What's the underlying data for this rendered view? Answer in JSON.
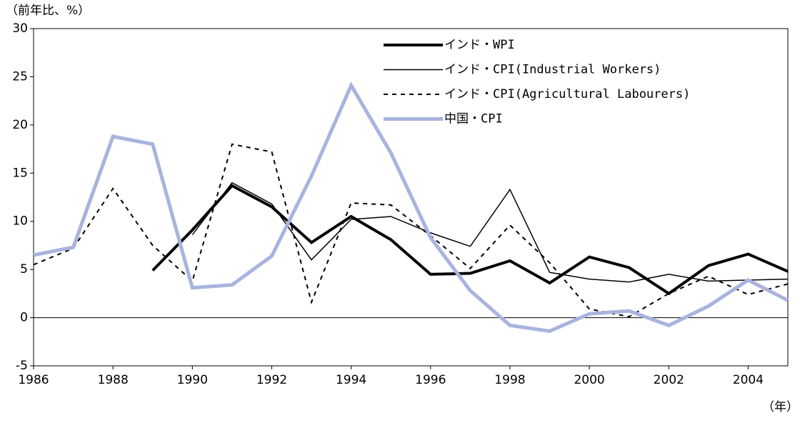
{
  "chart_data": {
    "type": "line",
    "y_label": "（前年比、%）",
    "x_label": "（年）",
    "x": [
      1986,
      1987,
      1988,
      1989,
      1990,
      1991,
      1992,
      1993,
      1994,
      1995,
      1996,
      1997,
      1998,
      1999,
      2000,
      2001,
      2002,
      2003,
      2004,
      2005
    ],
    "series": [
      {
        "name": "インド・WPI",
        "color": "#000000",
        "width": 4,
        "dash": "none",
        "values": [
          null,
          null,
          null,
          4.9,
          9.1,
          13.7,
          11.5,
          7.8,
          10.5,
          8.1,
          4.5,
          4.6,
          5.9,
          3.6,
          6.3,
          5.2,
          2.5,
          5.4,
          6.6,
          4.8
        ]
      },
      {
        "name": "インド・CPI(Industrial Workers)",
        "color": "#000000",
        "width": 1.5,
        "dash": "none",
        "values": [
          null,
          null,
          null,
          null,
          8.6,
          14.0,
          11.8,
          6.0,
          10.2,
          10.5,
          8.8,
          7.4,
          13.3,
          4.7,
          4.0,
          3.7,
          4.5,
          3.8,
          3.9,
          4.0
        ]
      },
      {
        "name": "インド・CPI(Agricultural Labourers)",
        "color": "#000000",
        "width": 2,
        "dash": "6,6",
        "values": [
          5.5,
          7.2,
          13.4,
          7.5,
          3.8,
          18.0,
          17.2,
          1.6,
          11.9,
          11.7,
          8.5,
          5.1,
          9.6,
          5.7,
          0.9,
          0.1,
          2.5,
          4.3,
          2.4,
          3.5
        ]
      },
      {
        "name": "中国・CPI",
        "color": "#a9b3de",
        "width": 5,
        "dash": "none",
        "values": [
          6.5,
          7.3,
          18.8,
          18.0,
          3.1,
          3.4,
          6.4,
          14.7,
          24.1,
          17.1,
          8.3,
          2.8,
          -0.8,
          -1.4,
          0.4,
          0.7,
          -0.8,
          1.2,
          3.9,
          1.8
        ]
      }
    ],
    "xlim": [
      1986,
      2005
    ],
    "xticks": [
      1986,
      1988,
      1990,
      1992,
      1994,
      1996,
      1998,
      2000,
      2002,
      2004
    ],
    "ylim": [
      -5,
      30
    ],
    "yticks": [
      -5,
      0,
      5,
      10,
      15,
      20,
      25,
      30
    ],
    "legend": "upper right",
    "grid": false
  }
}
